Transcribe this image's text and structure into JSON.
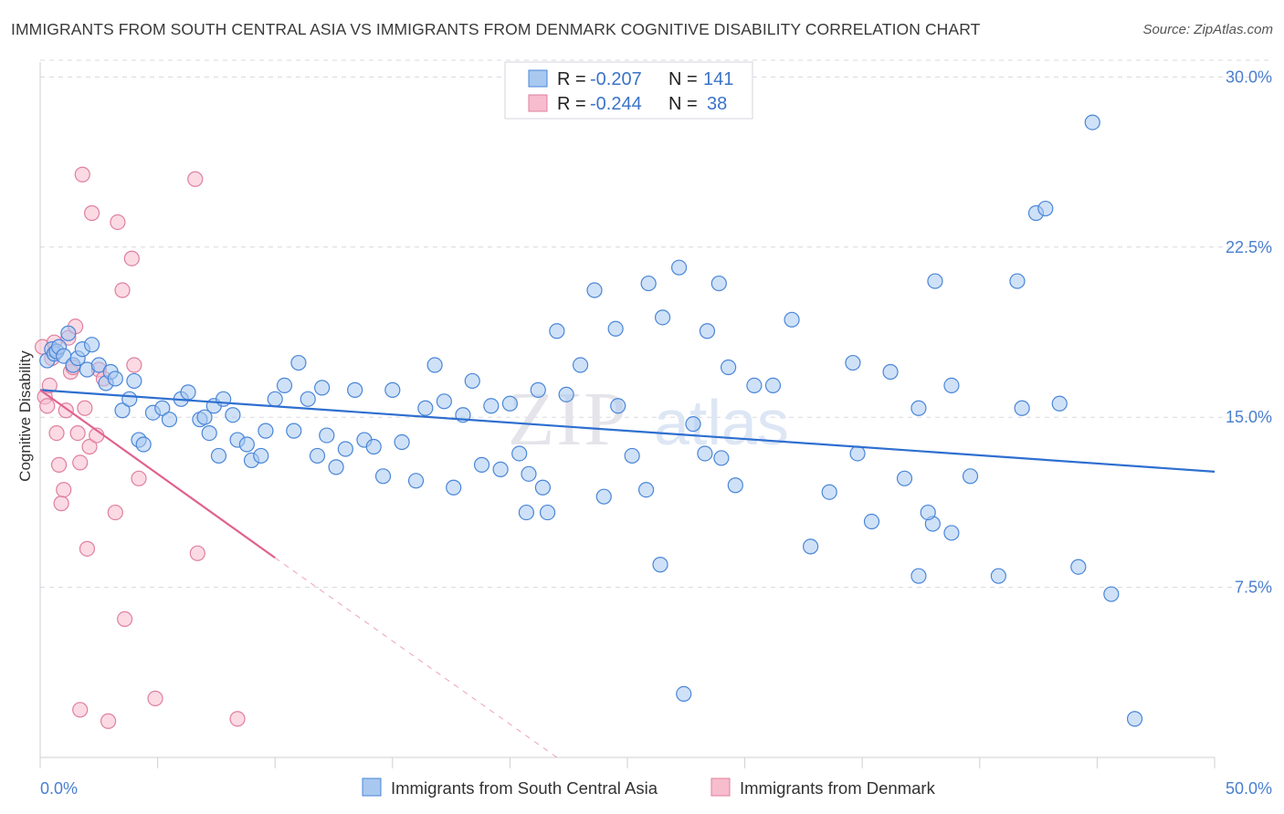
{
  "header": {
    "title": "IMMIGRANTS FROM SOUTH CENTRAL ASIA VS IMMIGRANTS FROM DENMARK COGNITIVE DISABILITY CORRELATION CHART",
    "source": "Source: ZipAtlas.com"
  },
  "watermark": {
    "zip": "ZIP",
    "atlas": "atlas"
  },
  "colors": {
    "blue_fill": "#a8c8f0",
    "blue_stroke": "#4a86d8",
    "blue_line": "#2e6fd0",
    "pink_fill": "#f7bccd",
    "pink_stroke": "#e07f9f",
    "pink_line": "#e0628d",
    "tick_text": "#4a7fd0",
    "grid": "#d8d8e0"
  },
  "legend": {
    "rows": [
      {
        "r_label": "R =",
        "r_value": "-0.207",
        "n_label": "N =",
        "n_value": "141"
      },
      {
        "r_label": "R =",
        "r_value": "-0.244",
        "n_label": "N =",
        "n_value": "38"
      }
    ]
  },
  "bottom_legend": {
    "blue": "Immigrants from South Central Asia",
    "pink": "Immigrants from Denmark"
  },
  "chart_data": {
    "type": "scatter",
    "xlabel": "",
    "ylabel": "Cognitive Disability",
    "xlim": [
      0,
      50
    ],
    "ylim": [
      0,
      30.7
    ],
    "x_tick_labels": [
      {
        "value": 0,
        "label": "0.0%"
      },
      {
        "value": 50,
        "label": "50.0%"
      }
    ],
    "y_tick_labels": [
      {
        "value": 7.5,
        "label": "7.5%"
      },
      {
        "value": 15,
        "label": "15.0%"
      },
      {
        "value": 22.5,
        "label": "22.5%"
      },
      {
        "value": 30,
        "label": "30.0%"
      }
    ],
    "x_minor_ticks": [
      0,
      5,
      10,
      15,
      20,
      25,
      30,
      35,
      40,
      45,
      50
    ],
    "grid": true,
    "series": [
      {
        "name": "Immigrants from South Central Asia",
        "color": "blue",
        "trend": {
          "x": [
            0,
            50
          ],
          "y": [
            16.2,
            12.6
          ]
        },
        "x": [
          0.3,
          0.5,
          0.6,
          0.7,
          0.8,
          1.0,
          1.2,
          1.4,
          1.6,
          1.8,
          2.0,
          2.2,
          2.5,
          2.8,
          3.0,
          3.2,
          3.5,
          3.8,
          4.0,
          4.2,
          4.4,
          4.8,
          5.2,
          5.5,
          6.0,
          6.3,
          6.8,
          7.0,
          7.2,
          7.4,
          7.6,
          7.8,
          8.2,
          8.4,
          8.8,
          9.0,
          9.4,
          9.6,
          10.0,
          10.4,
          10.8,
          11.0,
          11.4,
          11.8,
          12.0,
          12.2,
          12.6,
          13.0,
          13.4,
          13.8,
          14.2,
          14.6,
          15.0,
          15.4,
          16.0,
          16.4,
          16.8,
          17.2,
          17.6,
          18.0,
          18.4,
          18.8,
          19.2,
          19.6,
          20.0,
          20.4,
          20.8,
          21.2,
          21.6,
          22.0,
          22.4,
          23.0,
          23.6,
          24.0,
          24.6,
          25.2,
          25.8,
          26.4,
          27.2,
          27.8,
          28.4,
          29.0,
          29.6,
          30.4,
          31.2,
          32.0,
          32.8,
          33.6,
          34.6,
          35.4,
          36.2,
          37.4,
          38.0,
          38.8,
          39.6,
          40.8,
          41.6,
          42.4,
          43.4,
          44.2,
          45.6,
          46.6
        ],
        "y": [
          17.5,
          18.0,
          17.8,
          17.9,
          18.1,
          17.7,
          18.7,
          17.3,
          17.6,
          18.0,
          17.1,
          18.2,
          17.3,
          16.5,
          17.0,
          16.7,
          15.3,
          15.8,
          16.6,
          14.0,
          13.8,
          15.2,
          15.4,
          14.9,
          15.8,
          16.1,
          14.9,
          15.0,
          14.3,
          15.5,
          13.3,
          15.8,
          15.1,
          14.0,
          13.8,
          13.1,
          13.3,
          14.4,
          15.8,
          16.4,
          14.4,
          17.4,
          15.8,
          13.3,
          16.3,
          14.2,
          12.8,
          13.6,
          16.2,
          14.0,
          13.7,
          12.4,
          16.2,
          13.9,
          12.2,
          15.4,
          17.3,
          15.7,
          11.9,
          15.1,
          16.6,
          12.9,
          15.5,
          12.7,
          15.6,
          13.4,
          12.5,
          16.2,
          10.8,
          18.8,
          16.0,
          17.3,
          20.6,
          11.5,
          15.5,
          13.3,
          11.8,
          8.5,
          21.6,
          14.7,
          18.8,
          13.2,
          12.0,
          16.4,
          16.4,
          19.3,
          9.3,
          11.7,
          17.4,
          10.4,
          17.0,
          15.4,
          10.3,
          9.9,
          12.4,
          8.0,
          21.0,
          24.0,
          15.6,
          8.4,
          7.2,
          1.7
        ],
        "y_extra_note": "additional points listed in extra",
        "extra_x": [
          24.5,
          25.9,
          26.5,
          28.3,
          28.9,
          29.3,
          34.8,
          36.8,
          37.4,
          37.8,
          38.1,
          38.8,
          41.8,
          42.8,
          44.8,
          20.7,
          21.4,
          27.4
        ],
        "extra_y": [
          18.9,
          20.9,
          19.4,
          13.4,
          20.9,
          17.2,
          13.4,
          12.3,
          8.0,
          10.8,
          21.0,
          16.4,
          15.4,
          24.2,
          28.0,
          10.8,
          11.9,
          2.8
        ]
      },
      {
        "name": "Immigrants from Denmark",
        "color": "pink",
        "trend": {
          "x": [
            0,
            10
          ],
          "y": [
            16.2,
            8.8
          ],
          "dashed_to": {
            "x": 22,
            "y": 0
          }
        },
        "x": [
          0.1,
          0.2,
          0.3,
          0.4,
          0.5,
          0.6,
          0.7,
          0.8,
          0.9,
          1.0,
          1.1,
          1.2,
          1.3,
          1.4,
          1.5,
          1.6,
          1.7,
          1.8,
          2.0,
          2.1,
          2.2,
          2.4,
          2.5,
          2.7,
          2.9,
          3.2,
          3.3,
          3.5,
          3.6,
          3.9,
          4.0,
          4.2,
          4.9,
          6.6,
          6.7,
          8.4,
          1.7,
          1.9
        ],
        "y": [
          18.1,
          15.9,
          15.5,
          16.4,
          17.6,
          18.3,
          14.3,
          12.9,
          11.2,
          11.8,
          15.3,
          18.5,
          17.0,
          17.2,
          19.0,
          14.3,
          13.0,
          25.7,
          9.2,
          13.7,
          24.0,
          14.2,
          17.1,
          16.7,
          1.6,
          10.8,
          23.6,
          20.6,
          6.1,
          22.0,
          17.3,
          12.3,
          2.6,
          25.5,
          9.0,
          1.7,
          2.1,
          15.4
        ]
      }
    ]
  }
}
